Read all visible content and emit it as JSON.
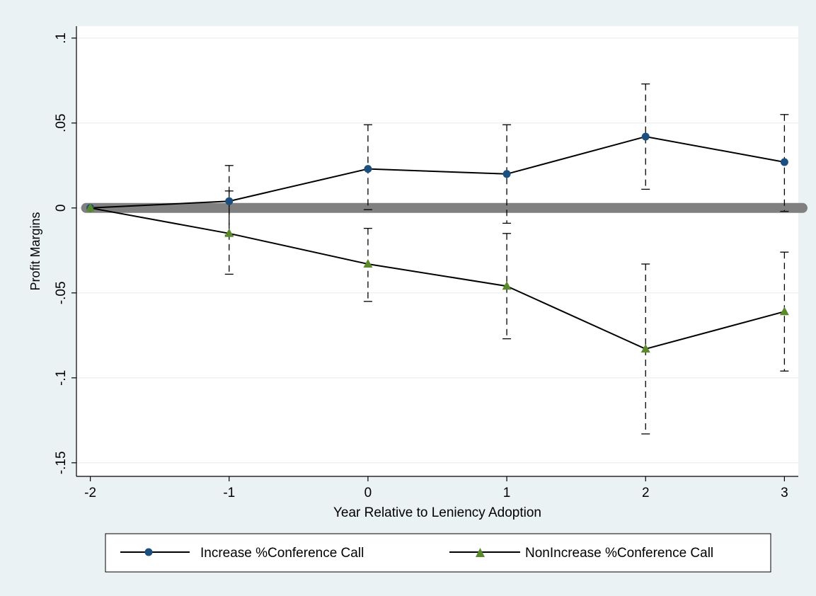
{
  "chart_data": {
    "type": "line",
    "title": "",
    "xlabel": "Year Relative to Leniency Adoption",
    "ylabel": "Profit Margins",
    "x": [
      -2,
      -1,
      0,
      1,
      2,
      3
    ],
    "x_tick_labels": [
      "-2",
      "-1",
      "0",
      "1",
      "2",
      "3"
    ],
    "xlim": [
      -2.1,
      3.1
    ],
    "ylim": [
      -0.158,
      0.107
    ],
    "y_ticks": [
      -0.15,
      -0.1,
      -0.05,
      0,
      0.05,
      0.1
    ],
    "y_tick_labels": [
      "-.15",
      "-.1",
      "-.05",
      "0",
      ".05",
      ".1"
    ],
    "grid": true,
    "reference_line": {
      "y": 0,
      "color": "#808080"
    },
    "legend_position": "bottom",
    "series": [
      {
        "name": "Increase %Conference Call",
        "marker": "circle",
        "color": "#1a4f80",
        "values": [
          0,
          0.004,
          0.023,
          0.02,
          0.042,
          0.027
        ],
        "ci_lower": [
          null,
          -0.016,
          -0.001,
          -0.009,
          0.011,
          -0.002
        ],
        "ci_upper": [
          null,
          0.025,
          0.049,
          0.049,
          0.073,
          0.055
        ]
      },
      {
        "name": "NonIncrease %Conference Call",
        "marker": "triangle",
        "color": "#5a8a2a",
        "values": [
          0,
          -0.015,
          -0.033,
          -0.046,
          -0.083,
          -0.061
        ],
        "ci_lower": [
          null,
          -0.039,
          -0.055,
          -0.077,
          -0.133,
          -0.096
        ],
        "ci_upper": [
          null,
          0.01,
          -0.012,
          -0.015,
          -0.033,
          -0.026
        ]
      }
    ]
  }
}
